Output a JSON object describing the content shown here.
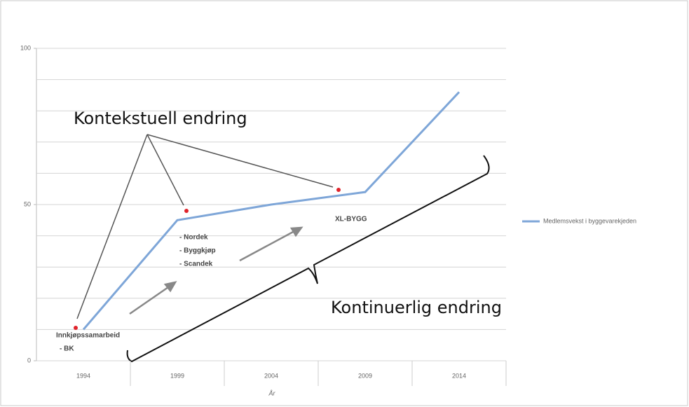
{
  "chart_data": {
    "type": "line",
    "categories": [
      "1994",
      "1999",
      "2004",
      "2009",
      "2014"
    ],
    "series": [
      {
        "name": "Medlemsvekst i byggevarekjeden",
        "color": "#7ea6d8",
        "values": [
          10,
          45,
          50,
          54,
          86
        ]
      }
    ],
    "ylim": [
      0,
      100
    ],
    "yticks": [
      0,
      50,
      100
    ],
    "grid_lines": [
      0,
      10,
      20,
      30,
      40,
      50,
      60,
      70,
      80,
      90,
      100
    ],
    "xlabel": "År",
    "legend": "right",
    "annotations": {
      "heading_top": "Kontekstuell endring",
      "heading_bottom": "Kontinuerlig endring",
      "group1": [
        "Innkjøpssamarbeid",
        "- BK"
      ],
      "group2": [
        "- Nordek",
        "- Byggkjøp",
        "- Scandek"
      ],
      "group3": [
        "XL-BYGG"
      ]
    }
  }
}
